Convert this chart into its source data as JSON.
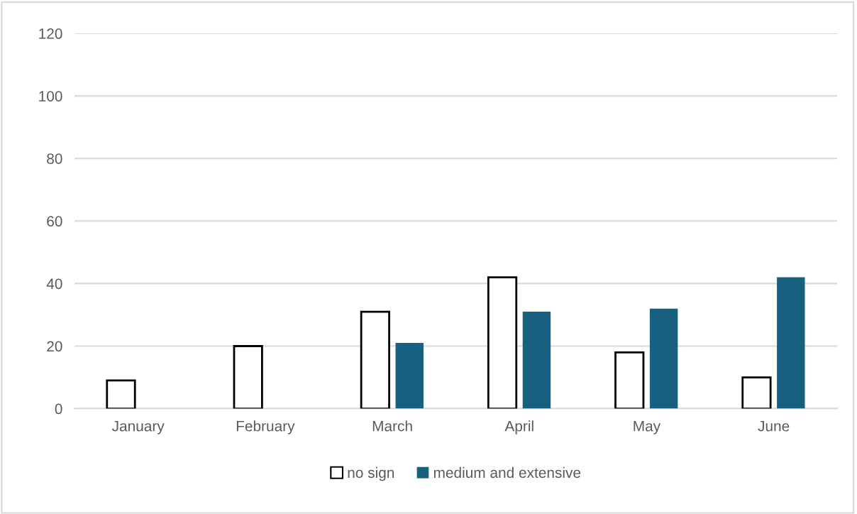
{
  "chart_data": {
    "type": "bar",
    "categories": [
      "January",
      "February",
      "March",
      "April",
      "May",
      "June"
    ],
    "series": [
      {
        "name": "no sign",
        "color": "#ffffff",
        "values": [
          9,
          20,
          31,
          42,
          18,
          10
        ]
      },
      {
        "name": "medium and extensive",
        "color": "#17607f",
        "values": [
          0,
          0,
          21,
          31,
          32,
          42
        ]
      }
    ],
    "ylim": [
      0,
      120
    ],
    "yticks": [
      0,
      20,
      40,
      60,
      80,
      100,
      120
    ],
    "grid": "y",
    "legend": "bottom"
  }
}
